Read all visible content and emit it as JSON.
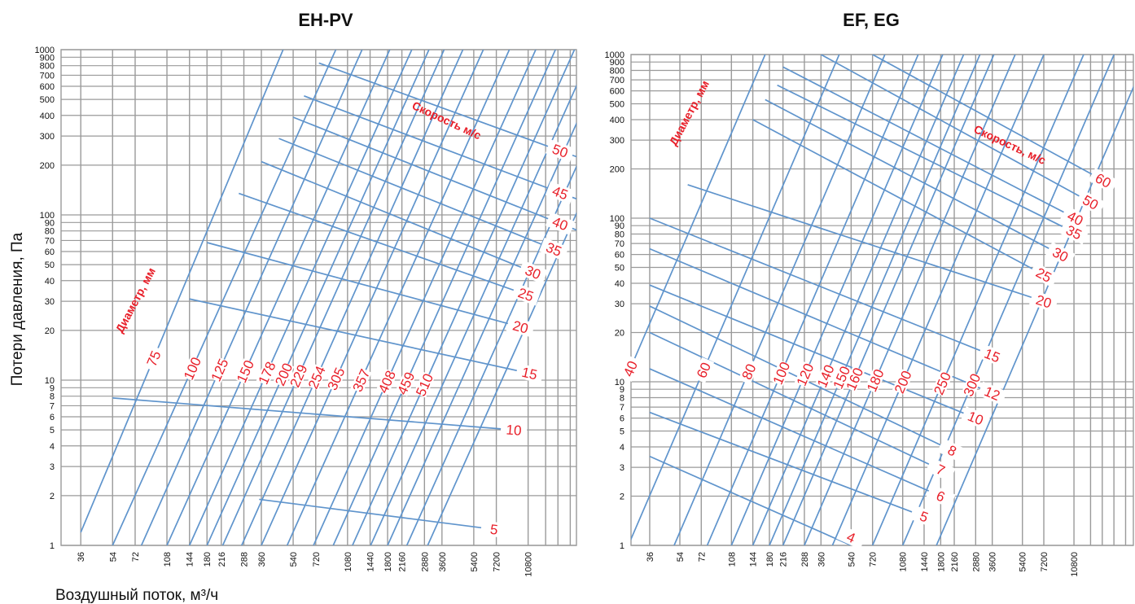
{
  "x_axis_label": "Воздушный поток, м³/ч",
  "y_axis_label": "Потери давления, Па",
  "colors": {
    "line": "#5f94cc",
    "grid": "#9a9a9a",
    "label": "#e8202a",
    "text": "#111111"
  },
  "chart_data": [
    {
      "type": "line",
      "title": "EH-PV",
      "xscale": "log",
      "yscale": "log",
      "xlim": [
        28,
        20000
      ],
      "ylim": [
        1,
        1000
      ],
      "grid": true,
      "x_ticks": [
        36,
        54,
        72,
        108,
        144,
        180,
        216,
        288,
        360,
        540,
        720,
        1080,
        1440,
        1800,
        2160,
        2880,
        3600,
        5400,
        7200,
        10800
      ],
      "y_ticks": [
        1,
        2,
        3,
        4,
        5,
        6,
        7,
        8,
        9,
        10,
        20,
        30,
        40,
        50,
        60,
        70,
        80,
        90,
        100,
        200,
        300,
        400,
        500,
        600,
        700,
        800,
        900,
        1000
      ],
      "diameter_annotation": "Диаметр, мм",
      "velocity_annotation": "Скорость м/с",
      "diameter_series": [
        {
          "name": "75",
          "points": [
            [
              36,
              1.2
            ],
            [
              475,
              1000
            ]
          ]
        },
        {
          "name": "100",
          "points": [
            [
              54,
              1
            ],
            [
              930,
              1000
            ]
          ]
        },
        {
          "name": "125",
          "points": [
            [
              78,
              1
            ],
            [
              1300,
              1000
            ]
          ]
        },
        {
          "name": "150",
          "points": [
            [
              108,
              1
            ],
            [
              1850,
              1000
            ]
          ]
        },
        {
          "name": "178",
          "points": [
            [
              144,
              1
            ],
            [
              2450,
              1000
            ]
          ]
        },
        {
          "name": "200",
          "points": [
            [
              180,
              1
            ],
            [
              3050,
              1000
            ]
          ]
        },
        {
          "name": "229",
          "points": [
            [
              220,
              1
            ],
            [
              3700,
              1000
            ]
          ]
        },
        {
          "name": "254",
          "points": [
            [
              280,
              1
            ],
            [
              4700,
              1000
            ]
          ]
        },
        {
          "name": "305",
          "points": [
            [
              360,
              1
            ],
            [
              6100,
              1000
            ]
          ]
        },
        {
          "name": "357",
          "points": [
            [
              500,
              1
            ],
            [
              8500,
              1000
            ]
          ]
        },
        {
          "name": "408",
          "points": [
            [
              700,
              1
            ],
            [
              11900,
              1000
            ]
          ]
        },
        {
          "name": "459",
          "points": [
            [
              900,
              1
            ],
            [
              15300,
              1000
            ]
          ]
        },
        {
          "name": "510",
          "points": [
            [
              1150,
              1
            ],
            [
              19500,
              1000
            ]
          ]
        },
        {
          "name": "",
          "points": [
            [
              1450,
              1
            ],
            [
              24600,
              1000
            ]
          ]
        },
        {
          "name": "",
          "points": [
            [
              1800,
              1
            ],
            [
              30500,
              1000
            ]
          ]
        },
        {
          "name": "",
          "points": [
            [
              2300,
              1
            ],
            [
              39000,
              1000
            ]
          ]
        },
        {
          "name": "",
          "points": [
            [
              3000,
              1
            ],
            [
              51000,
              1000
            ]
          ]
        }
      ],
      "velocity_series": [
        {
          "name": "5",
          "points": [
            [
              350,
              1.9
            ],
            [
              7000,
              1.25
            ]
          ]
        },
        {
          "name": "10",
          "points": [
            [
              54,
              7.8
            ],
            [
              9000,
              5
            ]
          ]
        },
        {
          "name": "15",
          "points": [
            [
              144,
              31
            ],
            [
              11000,
              11
            ]
          ]
        },
        {
          "name": "20",
          "points": [
            [
              180,
              68
            ],
            [
              9800,
              21
            ]
          ]
        },
        {
          "name": "25",
          "points": [
            [
              270,
              135
            ],
            [
              10500,
              33
            ]
          ]
        },
        {
          "name": "30",
          "points": [
            [
              360,
              210
            ],
            [
              11500,
              45
            ]
          ]
        },
        {
          "name": "35",
          "points": [
            [
              450,
              290
            ],
            [
              15000,
              62
            ]
          ]
        },
        {
          "name": "40",
          "points": [
            [
              540,
              390
            ],
            [
              20000,
              81
            ]
          ]
        },
        {
          "name": "45",
          "points": [
            [
              620,
              525
            ],
            [
              20000,
              125
            ]
          ]
        },
        {
          "name": "50",
          "points": [
            [
              750,
              830
            ],
            [
              20000,
              225
            ]
          ]
        }
      ]
    },
    {
      "type": "line",
      "title": "EF, EG",
      "xscale": "log",
      "yscale": "log",
      "xlim": [
        28,
        24000
      ],
      "ylim": [
        1,
        1000
      ],
      "grid": true,
      "x_ticks": [
        36,
        54,
        72,
        108,
        144,
        180,
        216,
        288,
        360,
        540,
        720,
        1080,
        1440,
        1800,
        2160,
        2880,
        3600,
        5400,
        7200,
        10800
      ],
      "y_ticks": [
        1,
        2,
        3,
        4,
        5,
        6,
        7,
        8,
        9,
        10,
        20,
        30,
        40,
        50,
        60,
        70,
        80,
        90,
        100,
        200,
        300,
        400,
        500,
        600,
        700,
        800,
        900,
        1000
      ],
      "diameter_annotation": "Диаметр, мм",
      "velocity_annotation": "Скорость, м/с",
      "diameter_series": [
        {
          "name": "40",
          "points": [
            [
              10,
              1
            ],
            [
              170,
              1000
            ]
          ]
        },
        {
          "name": "60",
          "points": [
            [
              27,
              1
            ],
            [
              460,
              1000
            ]
          ]
        },
        {
          "name": "80",
          "points": [
            [
              50,
              1
            ],
            [
              850,
              1000
            ]
          ]
        },
        {
          "name": "100",
          "points": [
            [
              78,
              1
            ],
            [
              1330,
              1000
            ]
          ]
        },
        {
          "name": "120",
          "points": [
            [
              108,
              1
            ],
            [
              1850,
              1000
            ]
          ]
        },
        {
          "name": "140",
          "points": [
            [
              144,
              1
            ],
            [
              2450,
              1000
            ]
          ]
        },
        {
          "name": "150",
          "points": [
            [
              180,
              1
            ],
            [
              3050,
              1000
            ]
          ]
        },
        {
          "name": "160",
          "points": [
            [
              216,
              1
            ],
            [
              3680,
              1000
            ]
          ]
        },
        {
          "name": "180",
          "points": [
            [
              288,
              1
            ],
            [
              4900,
              1000
            ]
          ]
        },
        {
          "name": "200",
          "points": [
            [
              420,
              1
            ],
            [
              7200,
              1000
            ]
          ]
        },
        {
          "name": "250",
          "points": [
            [
              720,
              1
            ],
            [
              12300,
              1000
            ]
          ]
        },
        {
          "name": "300",
          "points": [
            [
              1080,
              1
            ],
            [
              18500,
              1000
            ]
          ]
        },
        {
          "name": "",
          "points": [
            [
              1700,
              1
            ],
            [
              29000,
              1000
            ]
          ]
        }
      ],
      "velocity_series": [
        {
          "name": "4",
          "points": [
            [
              36,
              3.5
            ],
            [
              540,
              1
            ]
          ]
        },
        {
          "name": "5",
          "points": [
            [
              36,
              6.5
            ],
            [
              1440,
              1.5
            ]
          ]
        },
        {
          "name": "6",
          "points": [
            [
              36,
              12
            ],
            [
              1800,
              2
            ]
          ]
        },
        {
          "name": "7",
          "points": [
            [
              36,
              20
            ],
            [
              1800,
              2.9
            ]
          ]
        },
        {
          "name": "8",
          "points": [
            [
              36,
              29
            ],
            [
              2100,
              3.8
            ]
          ]
        },
        {
          "name": "10",
          "points": [
            [
              36,
              39
            ],
            [
              2880,
              6
            ]
          ]
        },
        {
          "name": "12",
          "points": [
            [
              36,
              65
            ],
            [
              3600,
              8.5
            ]
          ]
        },
        {
          "name": "15",
          "points": [
            [
              36,
              100
            ],
            [
              3600,
              14.5
            ]
          ]
        },
        {
          "name": "20",
          "points": [
            [
              60,
              160
            ],
            [
              7200,
              31
            ]
          ]
        },
        {
          "name": "25",
          "points": [
            [
              144,
              400
            ],
            [
              7200,
              45
            ]
          ]
        },
        {
          "name": "30",
          "points": [
            [
              170,
              530
            ],
            [
              9000,
              60
            ]
          ]
        },
        {
          "name": "35",
          "points": [
            [
              200,
              650
            ],
            [
              10800,
              82
            ]
          ]
        },
        {
          "name": "40",
          "points": [
            [
              216,
              840
            ],
            [
              11000,
              100
            ]
          ]
        },
        {
          "name": "50",
          "points": [
            [
              360,
              1000
            ],
            [
              13500,
              125
            ]
          ]
        },
        {
          "name": "60",
          "points": [
            [
              720,
              1000
            ],
            [
              16000,
              170
            ]
          ]
        }
      ]
    }
  ]
}
